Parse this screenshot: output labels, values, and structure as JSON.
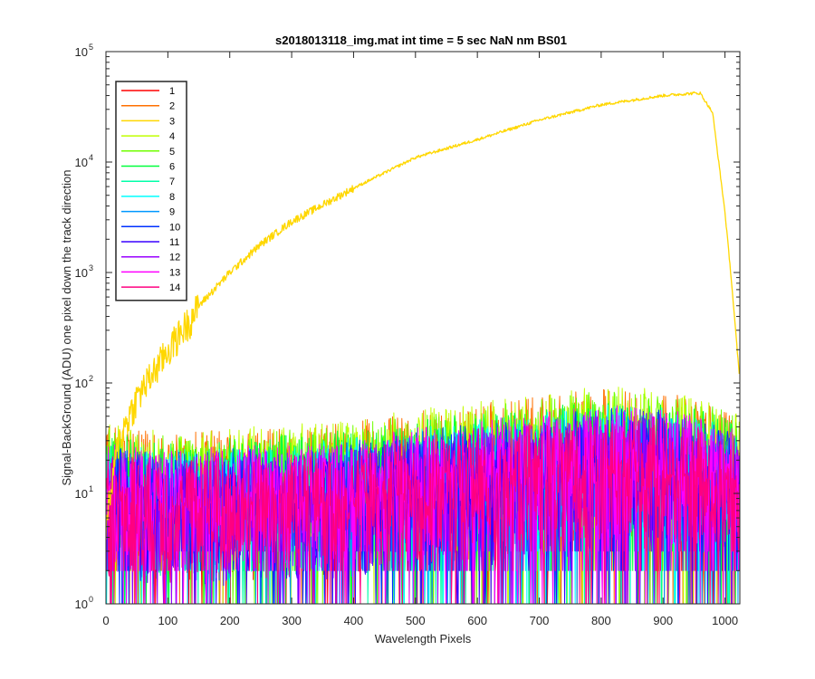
{
  "chart_data": {
    "type": "line",
    "title": "s2018013118_img.mat int time = 5 sec  NaN nm BS01",
    "xlabel": "Wavelength Pixels",
    "ylabel": "Signal-BackGround (ADU) one pixel down the track direction",
    "xlim": [
      0,
      1024
    ],
    "ylim": [
      1,
      100000
    ],
    "yscale": "log",
    "grid": false,
    "legend_position": "top-left",
    "x_ticks": [
      "0",
      "100",
      "200",
      "300",
      "400",
      "500",
      "600",
      "700",
      "800",
      "900",
      "1000"
    ],
    "y_ticks": [
      {
        "base": "10",
        "exp": "0"
      },
      {
        "base": "10",
        "exp": "1"
      },
      {
        "base": "10",
        "exp": "2"
      },
      {
        "base": "10",
        "exp": "3"
      },
      {
        "base": "10",
        "exp": "4"
      },
      {
        "base": "10",
        "exp": "5"
      }
    ],
    "x_count": 1024,
    "main_series_curve": {
      "x": [
        0,
        20,
        50,
        100,
        150,
        200,
        250,
        300,
        400,
        500,
        600,
        700,
        800,
        900,
        950,
        960,
        980,
        1000,
        1010,
        1023
      ],
      "y": [
        5,
        30,
        75,
        200,
        500,
        1000,
        1800,
        2900,
        5800,
        11000,
        16000,
        24000,
        33000,
        40000,
        42000,
        42000,
        28000,
        3500,
        900,
        120
      ]
    },
    "noise_series_envelope": {
      "x": [
        0,
        100,
        200,
        300,
        400,
        500,
        600,
        700,
        800,
        900,
        1000,
        1023
      ],
      "median": [
        15,
        13,
        13,
        14,
        15,
        17,
        20,
        22,
        25,
        25,
        22,
        20
      ],
      "max": [
        40,
        35,
        38,
        40,
        45,
        55,
        65,
        75,
        90,
        85,
        60,
        50
      ]
    },
    "series": [
      {
        "name": "1",
        "color": "#ff0000"
      },
      {
        "name": "2",
        "color": "#ff7000"
      },
      {
        "name": "3",
        "color": "#ffd700"
      },
      {
        "name": "4",
        "color": "#c0ff00"
      },
      {
        "name": "5",
        "color": "#70ff00"
      },
      {
        "name": "6",
        "color": "#00ff3c"
      },
      {
        "name": "7",
        "color": "#00ffa8"
      },
      {
        "name": "8",
        "color": "#00ffff"
      },
      {
        "name": "9",
        "color": "#0098ff"
      },
      {
        "name": "10",
        "color": "#0030ff"
      },
      {
        "name": "11",
        "color": "#3a00ff"
      },
      {
        "name": "12",
        "color": "#9800ff"
      },
      {
        "name": "13",
        "color": "#ff00ff"
      },
      {
        "name": "14",
        "color": "#ff0080"
      }
    ],
    "signal_series": "3"
  }
}
